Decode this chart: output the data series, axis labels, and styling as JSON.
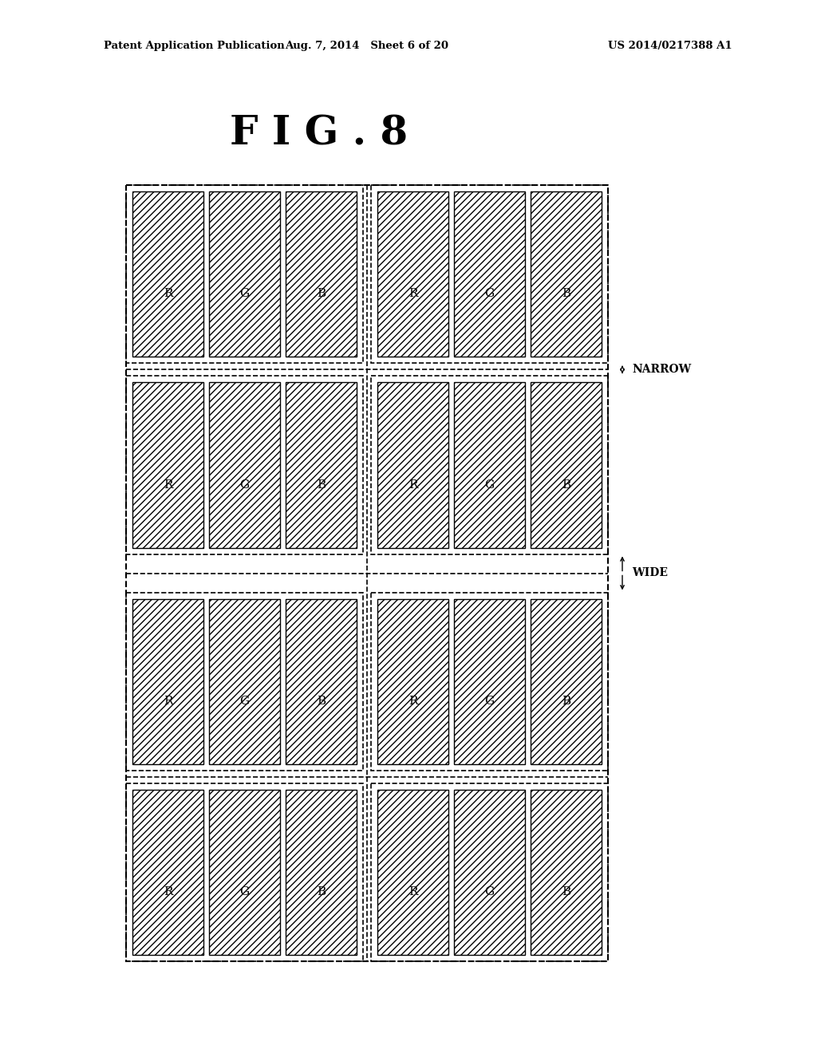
{
  "title": "F I G . 8",
  "header_left": "Patent Application Publication",
  "header_mid": "Aug. 7, 2014   Sheet 6 of 20",
  "header_right": "US 2014/0217388 A1",
  "bg_color": "#ffffff",
  "fig_width": 10.24,
  "fig_height": 13.2,
  "labels": [
    "R",
    "G",
    "B"
  ],
  "narrow_label": "NARROW",
  "wide_label": "WIDE",
  "hatch_pattern": "////",
  "line_color": "#000000"
}
